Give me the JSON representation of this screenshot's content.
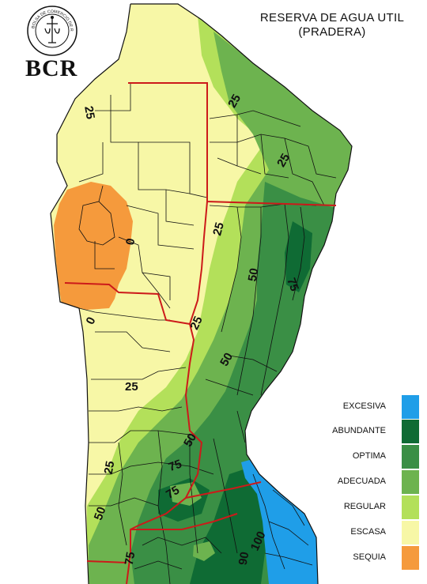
{
  "header": {
    "title_line1": "RESERVA DE AGUA UTIL",
    "title_line2": "(PRADERA)",
    "logo_text": "BCR",
    "seal_text": "BOLSA DE COMERCIO DE ROSARIO"
  },
  "legend": {
    "items": [
      {
        "label": "EXCESIVA",
        "color": "#1f9ee8"
      },
      {
        "label": "ABUNDANTE",
        "color": "#0f6b34"
      },
      {
        "label": "OPTIMA",
        "color": "#3a8f45"
      },
      {
        "label": "ADECUADA",
        "color": "#6db34f"
      },
      {
        "label": "REGULAR",
        "color": "#b3e05a"
      },
      {
        "label": "ESCASA",
        "color": "#f7f7a6"
      },
      {
        "label": "SEQUIA",
        "color": "#f59a3c"
      }
    ]
  },
  "isolines": [
    {
      "value": "25"
    },
    {
      "value": "25"
    },
    {
      "value": "25"
    },
    {
      "value": "25"
    },
    {
      "value": "25"
    },
    {
      "value": "25"
    },
    {
      "value": "25"
    },
    {
      "value": "0"
    },
    {
      "value": "0"
    },
    {
      "value": "50"
    },
    {
      "value": "75"
    },
    {
      "value": "50"
    },
    {
      "value": "50"
    },
    {
      "value": "50"
    },
    {
      "value": "75"
    },
    {
      "value": "75"
    },
    {
      "value": "75"
    },
    {
      "value": "100"
    },
    {
      "value": "90"
    }
  ]
}
